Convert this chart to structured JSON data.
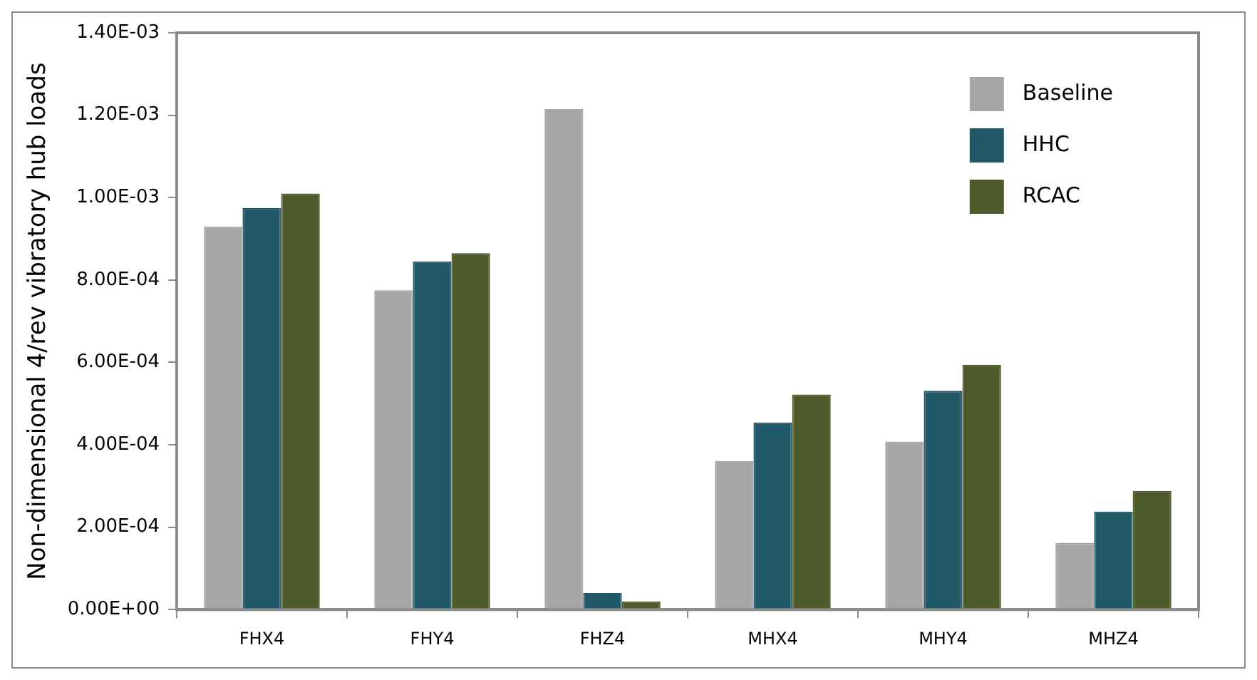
{
  "chart_data": {
    "type": "bar",
    "ylabel": "Non-dimensional 4/rev vibratory hub loads",
    "categories": [
      "FHX4",
      "FHY4",
      "FHZ4",
      "MHX4",
      "MHY4",
      "MHZ4"
    ],
    "series": [
      {
        "name": "Baseline",
        "color": "#a6a6a6",
        "values": [
          0.00093,
          0.000775,
          0.001215,
          0.00036,
          0.000408,
          0.000162
        ]
      },
      {
        "name": "HHC",
        "color": "#215868",
        "values": [
          0.000975,
          0.000845,
          4e-05,
          0.000454,
          0.000531,
          0.000238
        ]
      },
      {
        "name": "RCAC",
        "color": "#4f5a2a",
        "values": [
          0.00101,
          0.000865,
          2e-05,
          0.000522,
          0.000594,
          0.000288
        ]
      }
    ],
    "ylim": [
      0,
      0.0014
    ],
    "yticks": [
      {
        "value": 0,
        "label": "0.00E+00"
      },
      {
        "value": 0.0002,
        "label": "2.00E-04"
      },
      {
        "value": 0.0004,
        "label": "4.00E-04"
      },
      {
        "value": 0.0006,
        "label": "6.00E-04"
      },
      {
        "value": 0.0008,
        "label": "8.00E-04"
      },
      {
        "value": 0.001,
        "label": "1.00E-03"
      },
      {
        "value": 0.0012,
        "label": "1.20E-03"
      },
      {
        "value": 0.0014,
        "label": "1.40E-03"
      }
    ],
    "grid": false,
    "legend": "top right"
  }
}
